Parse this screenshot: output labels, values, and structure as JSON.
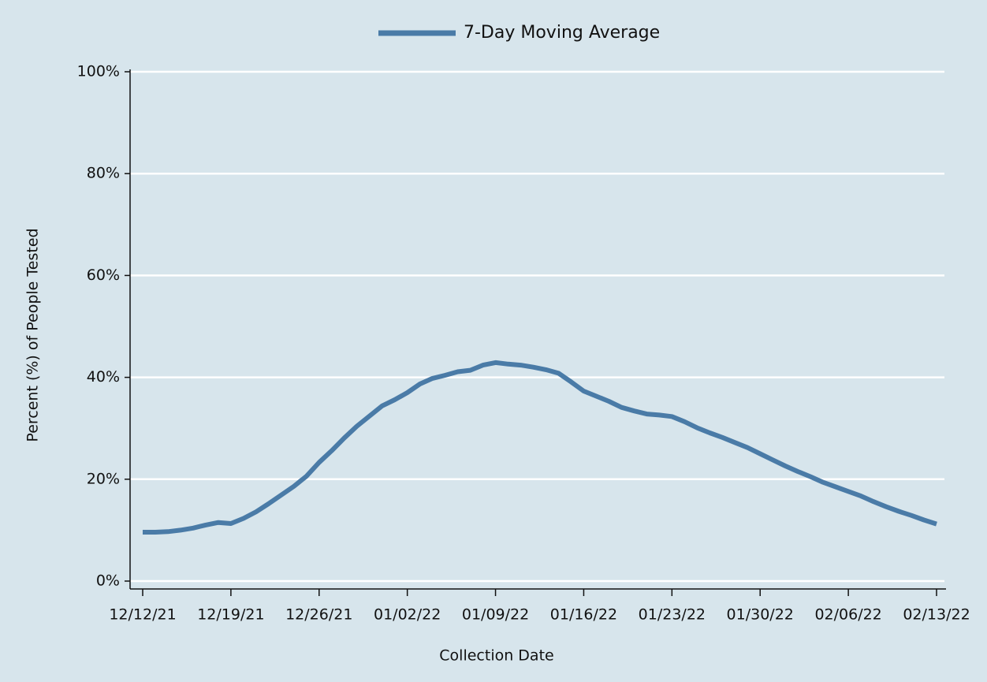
{
  "chart_data": {
    "type": "line",
    "x_label": "Collection Date",
    "y_label": "Percent (%) of People Tested",
    "categories": [
      "12/12/21",
      null,
      null,
      null,
      null,
      null,
      null,
      "12/19/21",
      null,
      null,
      null,
      null,
      null,
      null,
      "12/26/21",
      null,
      null,
      null,
      null,
      null,
      null,
      "01/02/22",
      null,
      null,
      null,
      null,
      null,
      null,
      "01/09/22",
      null,
      null,
      null,
      null,
      null,
      null,
      "01/16/22",
      null,
      null,
      null,
      null,
      null,
      null,
      "01/23/22",
      null,
      null,
      null,
      null,
      null,
      null,
      "01/30/22",
      null,
      null,
      null,
      null,
      null,
      null,
      "02/06/22",
      null,
      null,
      null,
      null,
      null,
      null,
      "02/13/22"
    ],
    "series": [
      {
        "name": "7-Day Moving Average",
        "color": "#4a7ba7",
        "values": [
          9.6,
          9.6,
          9.7,
          10.0,
          10.4,
          11.0,
          11.5,
          11.3,
          12.3,
          13.6,
          15.2,
          16.9,
          18.6,
          20.6,
          23.3,
          25.6,
          28.1,
          30.4,
          32.4,
          34.4,
          35.6,
          37.0,
          38.7,
          39.8,
          40.4,
          41.1,
          41.4,
          42.4,
          42.9,
          42.6,
          42.4,
          42.0,
          41.5,
          40.8,
          39.1,
          37.3,
          36.3,
          35.3,
          34.1,
          33.4,
          32.8,
          32.6,
          32.3,
          31.3,
          30.1,
          29.1,
          28.2,
          27.2,
          26.2,
          25.0,
          23.8,
          22.6,
          21.5,
          20.5,
          19.4,
          18.5,
          17.6,
          16.7,
          15.6,
          14.6,
          13.7,
          12.9,
          12.0,
          11.2
        ]
      }
    ],
    "ylim": [
      0,
      100
    ],
    "yticks": [
      {
        "value": 0,
        "label": "0%"
      },
      {
        "value": 20,
        "label": "20%"
      },
      {
        "value": 40,
        "label": "40%"
      },
      {
        "value": 60,
        "label": "60%"
      },
      {
        "value": 80,
        "label": "80%"
      },
      {
        "value": 100,
        "label": "100%"
      }
    ],
    "grid": true,
    "legend": "top"
  }
}
